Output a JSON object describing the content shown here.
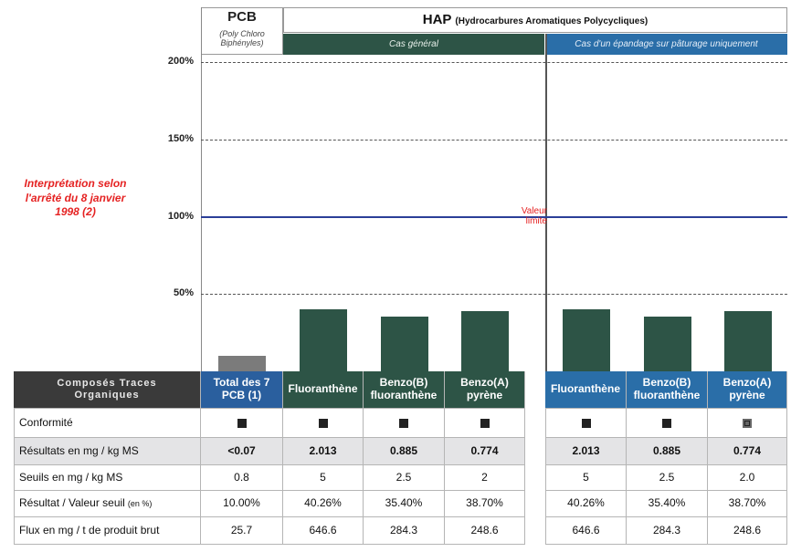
{
  "header": {
    "pcb": {
      "title": "PCB",
      "subtitle": "(Poly Chloro Biphényles)"
    },
    "hap": {
      "title": "HAP",
      "subtitle": "(Hydrocarbures Aromatiques Polycycliques)"
    },
    "groups": [
      "Cas général",
      "Cas d'un épandage sur pâturage uniquement"
    ]
  },
  "interpretation": "Interprétation selon l'arrêté du 8 janvier 1998 (2)",
  "chart_data": {
    "type": "bar",
    "categories": [
      "Total des 7 PCB (1)",
      "Fluoranthène",
      "Benzo(B) fluoranthène",
      "Benzo(A) pyrène",
      "Fluoranthène",
      "Benzo(B) fluoranthène",
      "Benzo(A) pyrène"
    ],
    "values": [
      10,
      40.26,
      35.4,
      38.7,
      40.26,
      35.4,
      38.7
    ],
    "value_labels": [
      "10.00%",
      "40.26%",
      "35.40%",
      "38.70%",
      "40.26%",
      "35.40%",
      "38.70%"
    ],
    "colors": [
      "#7b7b7b",
      "#2d5446",
      "#2d5446",
      "#2d5446",
      "#2d5446",
      "#2d5446",
      "#2d5446"
    ],
    "ylim": [
      0,
      205
    ],
    "yticks": [
      {
        "value": 50,
        "label": "50%"
      },
      {
        "value": 100,
        "label": "100%"
      },
      {
        "value": 150,
        "label": "150%"
      },
      {
        "value": 200,
        "label": "200%"
      }
    ],
    "grid": true,
    "reference_line": {
      "value": 100,
      "label": "Valeur limite",
      "color": "#2b3f98"
    }
  },
  "table": {
    "corner": "Composés Traces Organiques",
    "rows": [
      {
        "label": "Conformité"
      },
      {
        "label": "Résultats en mg / kg MS",
        "cells": [
          "<0.07",
          "2.013",
          "0.885",
          "0.774",
          "2.013",
          "0.885",
          "0.774"
        ]
      },
      {
        "label": "Seuils en mg / kg MS",
        "cells": [
          "0.8",
          "5",
          "2.5",
          "2",
          "5",
          "2.5",
          "2.0"
        ]
      },
      {
        "label": "Résultat / Valeur seuil",
        "unit": "(en %)"
      },
      {
        "label": "Flux en mg / t de produit brut",
        "cells": [
          "25.7",
          "646.6",
          "284.3",
          "248.6",
          "646.6",
          "284.3",
          "248.6"
        ]
      }
    ]
  }
}
